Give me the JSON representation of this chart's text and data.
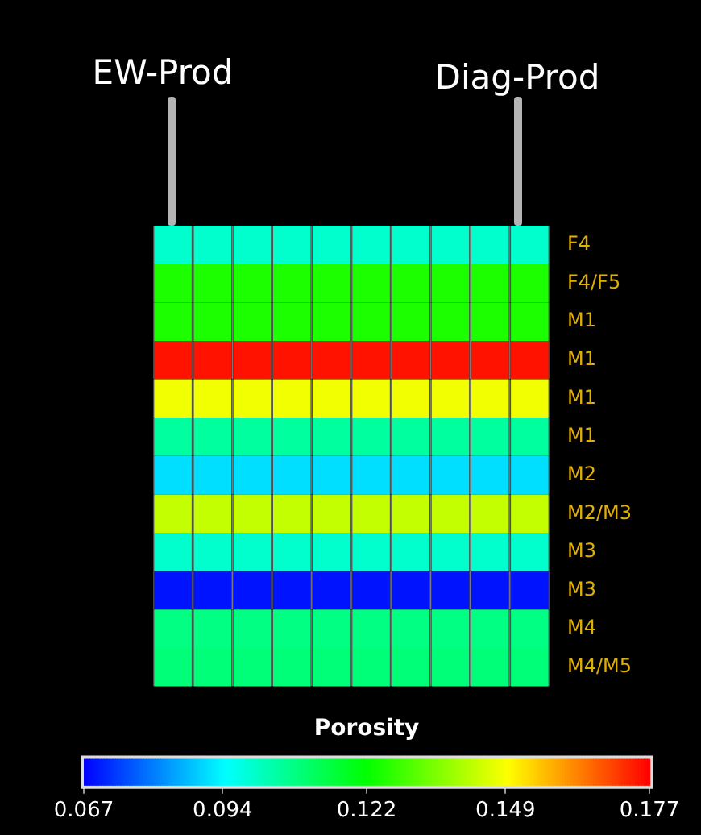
{
  "chart_data": {
    "type": "heatmap",
    "clabel": "Porosity",
    "annotations": [
      "EW-Prod",
      "Diag-Prod"
    ],
    "categories": [
      null,
      null,
      null,
      null,
      null,
      null,
      null,
      null,
      null,
      null
    ],
    "y_categories": [
      "F4",
      "F4/F5",
      "M1",
      "M1",
      "M1",
      "M1",
      "M2",
      "M2/M3",
      "M3",
      "M3",
      "M4",
      "M4/M5"
    ],
    "cells": [
      [
        0.1,
        0.1,
        0.1,
        0.1,
        0.1,
        0.1,
        0.1,
        0.1,
        0.1,
        0.1
      ],
      [
        0.125,
        0.125,
        0.125,
        0.125,
        0.125,
        0.125,
        0.125,
        0.125,
        0.125,
        0.125
      ],
      [
        0.125,
        0.125,
        0.125,
        0.125,
        0.125,
        0.125,
        0.125,
        0.125,
        0.125,
        0.125
      ],
      [
        0.175,
        0.175,
        0.175,
        0.175,
        0.175,
        0.175,
        0.175,
        0.175,
        0.175,
        0.175
      ],
      [
        0.148,
        0.148,
        0.148,
        0.148,
        0.148,
        0.148,
        0.148,
        0.148,
        0.148,
        0.148
      ],
      [
        0.105,
        0.105,
        0.105,
        0.105,
        0.105,
        0.105,
        0.105,
        0.105,
        0.105,
        0.105
      ],
      [
        0.091,
        0.091,
        0.091,
        0.091,
        0.091,
        0.091,
        0.091,
        0.091,
        0.091,
        0.091
      ],
      [
        0.143,
        0.143,
        0.143,
        0.143,
        0.143,
        0.143,
        0.143,
        0.143,
        0.143,
        0.143
      ],
      [
        0.1,
        0.1,
        0.1,
        0.1,
        0.1,
        0.1,
        0.1,
        0.1,
        0.1,
        0.1
      ],
      [
        0.069,
        0.069,
        0.069,
        0.069,
        0.069,
        0.069,
        0.069,
        0.069,
        0.069,
        0.069
      ],
      [
        0.108,
        0.108,
        0.108,
        0.108,
        0.108,
        0.108,
        0.108,
        0.108,
        0.108,
        0.108
      ],
      [
        0.109,
        0.109,
        0.109,
        0.109,
        0.109,
        0.109,
        0.109,
        0.109,
        0.109,
        0.109
      ]
    ],
    "clim": [
      0.067,
      0.177
    ],
    "cticks": [
      0.067,
      0.094,
      0.122,
      0.149,
      0.177
    ]
  }
}
